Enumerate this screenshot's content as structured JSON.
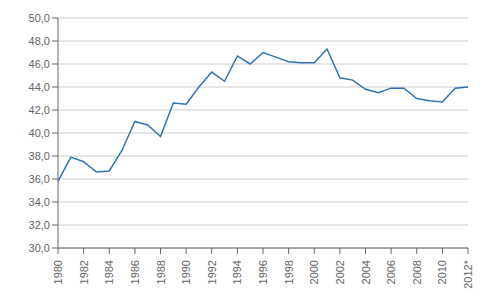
{
  "chart_data": {
    "type": "line",
    "x": [
      1980,
      1981,
      1982,
      1983,
      1984,
      1985,
      1986,
      1987,
      1988,
      1989,
      1990,
      1991,
      1992,
      1993,
      1994,
      1995,
      1996,
      1997,
      1998,
      1999,
      2000,
      2001,
      2002,
      2003,
      2004,
      2005,
      2006,
      2007,
      2008,
      2009,
      2010,
      2011,
      2012
    ],
    "values": [
      35.8,
      37.9,
      37.5,
      36.6,
      36.7,
      38.5,
      41.0,
      40.7,
      39.7,
      42.6,
      42.5,
      44.0,
      45.3,
      44.5,
      46.7,
      46.0,
      47.0,
      46.6,
      46.2,
      46.1,
      46.1,
      47.3,
      44.8,
      44.6,
      43.8,
      43.5,
      43.9,
      43.9,
      43.0,
      42.8,
      42.7,
      43.9,
      44.0
    ],
    "color": "#2E74B5",
    "xlim": [
      1980,
      2012
    ],
    "xticks": [
      1980,
      1982,
      1984,
      1986,
      1988,
      1990,
      1992,
      1994,
      1996,
      1998,
      2000,
      2002,
      2004,
      2006,
      2008,
      2010,
      {
        "value": 2012,
        "label": "2012*"
      }
    ],
    "ylim": [
      30.0,
      50.0
    ],
    "yticks": [
      {
        "value": 30.0,
        "label": "30,0"
      },
      {
        "value": 32.0,
        "label": "32,0"
      },
      {
        "value": 34.0,
        "label": "34,0"
      },
      {
        "value": 36.0,
        "label": "36,0"
      },
      {
        "value": 38.0,
        "label": "38,0"
      },
      {
        "value": 40.0,
        "label": "40,0"
      },
      {
        "value": 42.0,
        "label": "42,0"
      },
      {
        "value": 44.0,
        "label": "44,0"
      },
      {
        "value": 46.0,
        "label": "46,0"
      },
      {
        "value": 48.0,
        "label": "48,0"
      },
      {
        "value": 50.0,
        "label": "50,0"
      }
    ],
    "grid": "y"
  }
}
